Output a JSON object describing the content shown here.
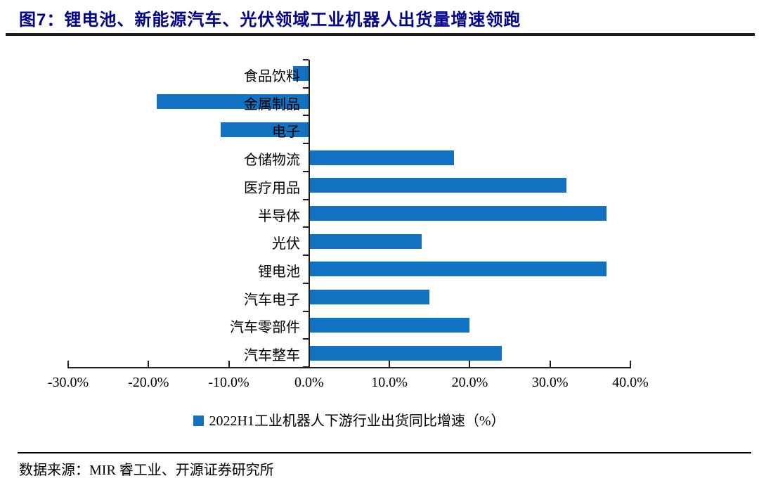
{
  "title": {
    "label": "图7：锂电池、新能源汽车、光伏领域工业机器人出货量增速领跑"
  },
  "chart_data": {
    "type": "bar",
    "orientation": "horizontal",
    "title": "",
    "categories": [
      "食品饮料",
      "金属制品",
      "电子",
      "仓储物流",
      "医疗用品",
      "半导体",
      "光伏",
      "锂电池",
      "汽车电子",
      "汽车零部件",
      "汽车整车"
    ],
    "values": [
      -2,
      -19,
      -11,
      18,
      32,
      37,
      14,
      37,
      15,
      20,
      24
    ],
    "unit": "%",
    "xlabel": "",
    "ylabel": "",
    "xlim": [
      -30,
      40
    ],
    "x_tick_labels": [
      "-30.0%",
      "-20.0%",
      "-10.0%",
      "0.0%",
      "10.0%",
      "20.0%",
      "30.0%",
      "40.0%"
    ],
    "grid": false,
    "legend": [
      "2022H1工业机器人下游行业出货同比增速（%）"
    ],
    "legend_position": "bottom",
    "bar_color": "#1272C2",
    "axis_color": "#1f1f1f"
  },
  "footer": {
    "source": "数据来源：MIR 睿工业、开源证券研究所"
  }
}
